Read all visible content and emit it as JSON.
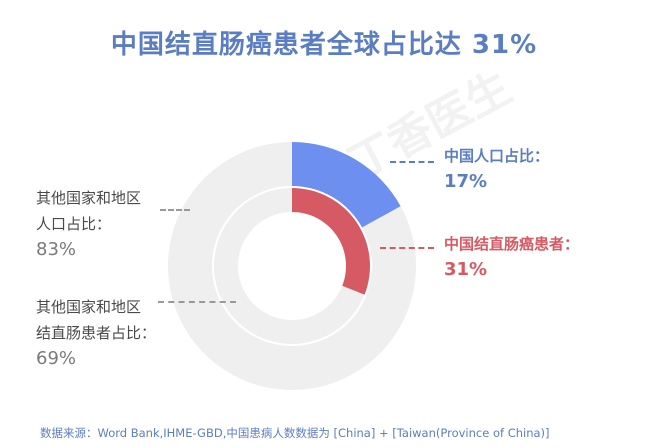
{
  "title": "中国结直肠癌患者全球占比达 31%",
  "watermark": "丁香医生",
  "labels": {
    "china_pop_name": "中国人口占比：",
    "china_pop_pct": "17%",
    "china_crc_name": "中国结直肠癌患者：",
    "china_crc_pct": "31%",
    "other_pop_line1": "其他国家和地区",
    "other_pop_line2": "人口占比：",
    "other_pop_pct": "83%",
    "other_crc_line1": "其他国家和地区",
    "other_crc_line2": "结直肠患者占比：",
    "other_crc_pct": "69%"
  },
  "source": "数据来源：Word Bank,IHME-GBD,中国患病人数数据为 [China] + [Taiwan(Province of China)]",
  "chart_data": {
    "type": "pie",
    "title": "中国结直肠癌患者全球占比达 31%",
    "rings": [
      {
        "ring": "outer",
        "slices": [
          {
            "label": "中国人口占比",
            "value": 17,
            "color": "#6d8ff0"
          },
          {
            "label": "其他国家和地区人口占比",
            "value": 83,
            "color": "#efefef"
          }
        ]
      },
      {
        "ring": "inner",
        "slices": [
          {
            "label": "中国结直肠癌患者",
            "value": 31,
            "color": "#d65a63"
          },
          {
            "label": "其他国家和地区结直肠患者占比",
            "value": 69,
            "color": "#efefef"
          }
        ]
      }
    ]
  }
}
